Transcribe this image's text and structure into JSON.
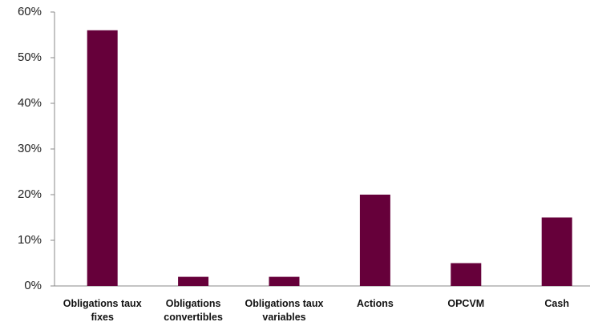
{
  "chart_data": {
    "type": "bar",
    "categories": [
      "Obligations taux fixes",
      "Obligations convertibles",
      "Obligations taux variables",
      "Actions",
      "OPCVM",
      "Cash"
    ],
    "values": [
      56,
      2,
      2,
      20,
      5,
      15
    ],
    "color": "#66003a",
    "ylim": [
      0,
      60
    ],
    "yticks": [
      {
        "value": 0,
        "label": "0%"
      },
      {
        "value": 10,
        "label": "10%"
      },
      {
        "value": 20,
        "label": "20%"
      },
      {
        "value": 30,
        "label": "30%"
      },
      {
        "value": 40,
        "label": "40%"
      },
      {
        "value": 50,
        "label": "50%"
      },
      {
        "value": 60,
        "label": "60%"
      }
    ],
    "grid": false
  }
}
